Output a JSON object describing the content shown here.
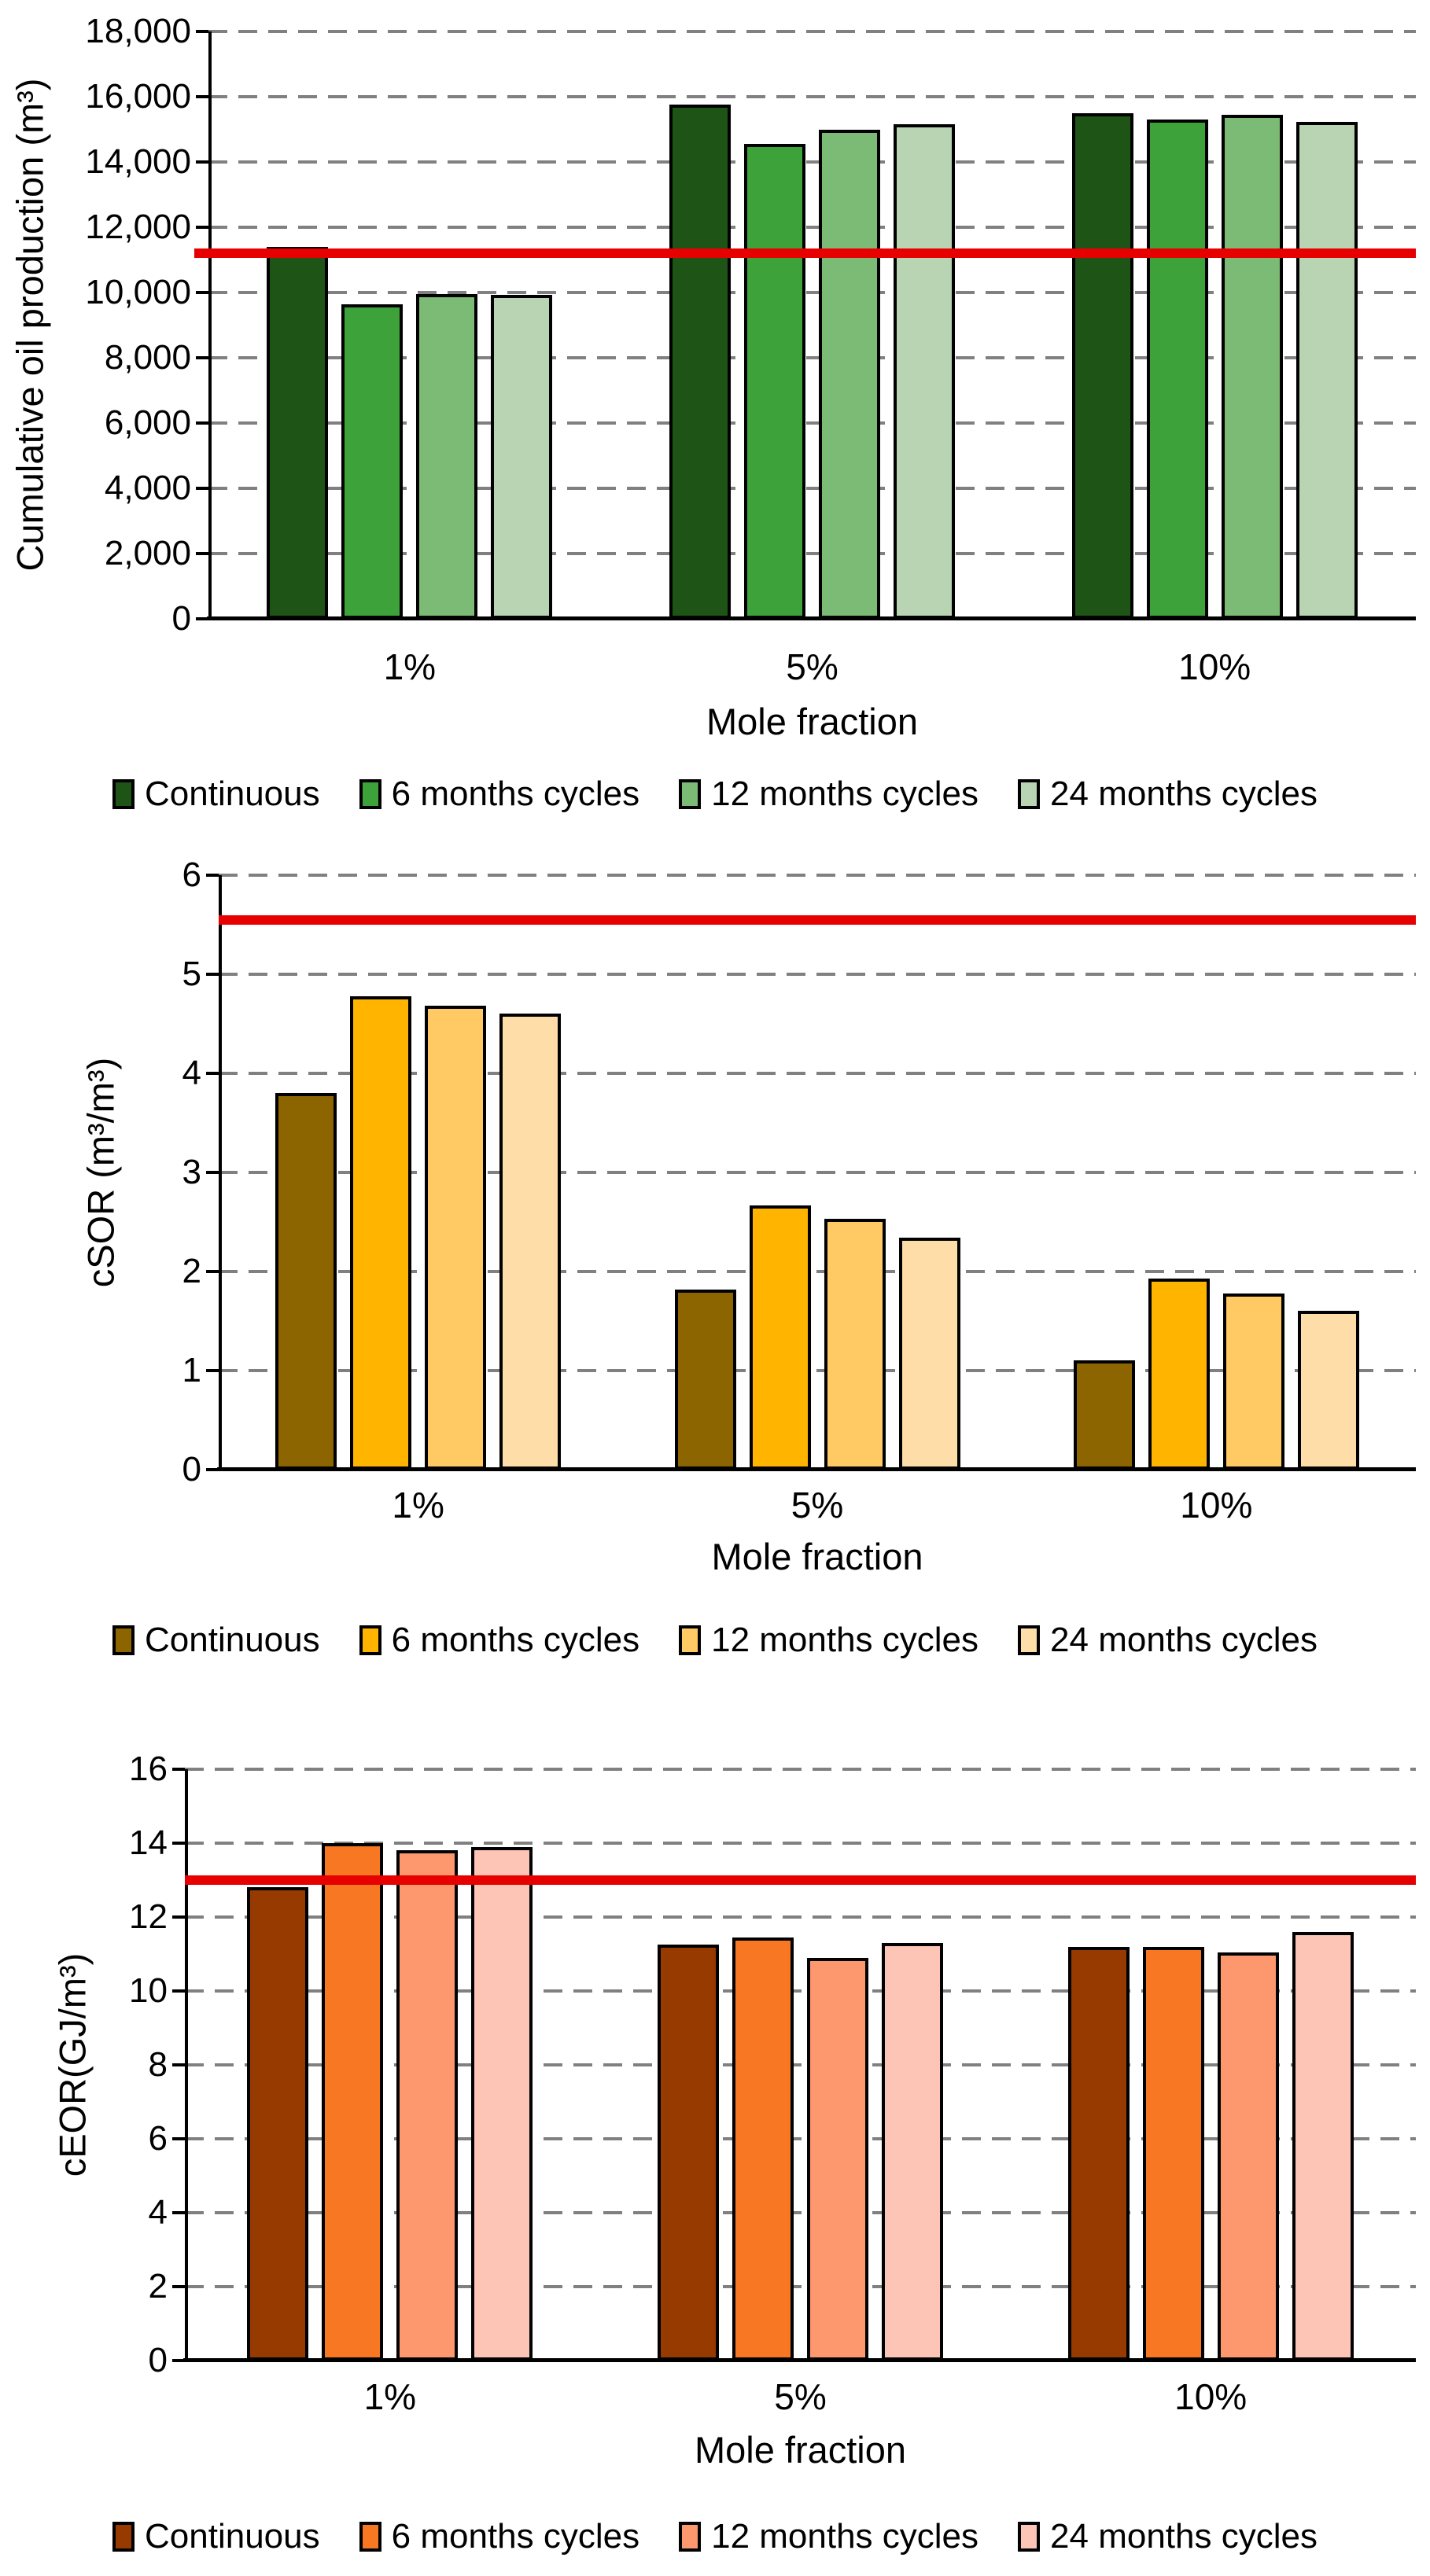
{
  "figure": {
    "background": "#ffffff",
    "grid_color": "#808080",
    "axis_color": "#000000",
    "bar_border_color": "#000000",
    "threshold_color": "#E60000"
  },
  "chart_data": [
    {
      "type": "bar",
      "title": "",
      "ylabel": "Cumulative oil production (m³)",
      "xlabel": "Mole fraction",
      "categories": [
        "1%",
        "5%",
        "10%"
      ],
      "series": [
        {
          "name": "Continuous",
          "color": "#1E5416",
          "values": [
            11400,
            15750,
            15500
          ]
        },
        {
          "name": "6 months cycles",
          "color": "#3EA23A",
          "values": [
            9650,
            14550,
            15300
          ]
        },
        {
          "name": "12 months cycles",
          "color": "#7CBB76",
          "values": [
            9950,
            15000,
            15450
          ]
        },
        {
          "name": "24 months cycles",
          "color": "#B9D4B3",
          "values": [
            9920,
            15150,
            15220
          ]
        }
      ],
      "ylim": [
        0,
        18000
      ],
      "ytick_step": 2000,
      "ytick_labels": [
        "0",
        "2,000",
        "4,000",
        "6,000",
        "8,000",
        "10,000",
        "12,000",
        "14,000",
        "16,000",
        "18,000"
      ],
      "ref_line": 11200,
      "grid": true,
      "legend_position": "bottom"
    },
    {
      "type": "bar",
      "title": "",
      "ylabel": "cSOR (m³/m³)",
      "xlabel": "Mole fraction",
      "categories": [
        "1%",
        "5%",
        "10%"
      ],
      "series": [
        {
          "name": "Continuous",
          "color": "#8C6400",
          "values": [
            3.8,
            1.82,
            1.1
          ]
        },
        {
          "name": "6 months cycles",
          "color": "#FFB400",
          "values": [
            4.78,
            2.67,
            1.93
          ]
        },
        {
          "name": "12 months cycles",
          "color": "#FFC964",
          "values": [
            4.68,
            2.53,
            1.78
          ]
        },
        {
          "name": "24 months cycles",
          "color": "#FFDDA8",
          "values": [
            4.6,
            2.34,
            1.6
          ]
        }
      ],
      "ylim": [
        0,
        6
      ],
      "ytick_step": 1,
      "ytick_labels": [
        "0",
        "1",
        "2",
        "3",
        "4",
        "5",
        "6"
      ],
      "ref_line": 5.55,
      "grid": true,
      "legend_position": "bottom"
    },
    {
      "type": "bar",
      "title": "",
      "ylabel": "cEOR(GJ/m³)",
      "xlabel": "Mole fraction",
      "categories": [
        "1%",
        "5%",
        "10%"
      ],
      "series": [
        {
          "name": "Continuous",
          "color": "#963A00",
          "values": [
            12.8,
            11.25,
            11.2
          ]
        },
        {
          "name": "6 months cycles",
          "color": "#F87723",
          "values": [
            14.0,
            11.45,
            11.2
          ]
        },
        {
          "name": "12 months cycles",
          "color": "#FD976E",
          "values": [
            13.8,
            10.9,
            11.05
          ]
        },
        {
          "name": "24 months cycles",
          "color": "#FDC5B5",
          "values": [
            13.9,
            11.3,
            11.6
          ]
        }
      ],
      "ylim": [
        0,
        16
      ],
      "ytick_step": 2,
      "ytick_labels": [
        "0",
        "2",
        "4",
        "6",
        "8",
        "10",
        "12",
        "14",
        "16"
      ],
      "ref_line": 13,
      "grid": true,
      "legend_position": "bottom"
    }
  ]
}
